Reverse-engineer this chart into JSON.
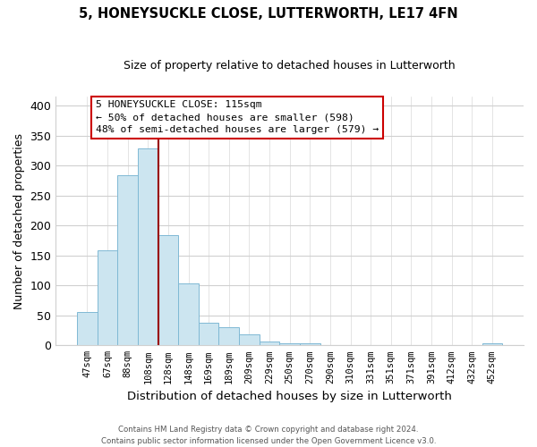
{
  "title": "5, HONEYSUCKLE CLOSE, LUTTERWORTH, LE17 4FN",
  "subtitle": "Size of property relative to detached houses in Lutterworth",
  "xlabel": "Distribution of detached houses by size in Lutterworth",
  "ylabel": "Number of detached properties",
  "bar_labels": [
    "47sqm",
    "67sqm",
    "88sqm",
    "108sqm",
    "128sqm",
    "148sqm",
    "169sqm",
    "189sqm",
    "209sqm",
    "229sqm",
    "250sqm",
    "270sqm",
    "290sqm",
    "310sqm",
    "331sqm",
    "351sqm",
    "371sqm",
    "391sqm",
    "412sqm",
    "432sqm",
    "452sqm"
  ],
  "bar_values": [
    55,
    158,
    284,
    329,
    184,
    103,
    37,
    31,
    18,
    6,
    4,
    3,
    0,
    0,
    0,
    0,
    0,
    0,
    0,
    0,
    3
  ],
  "bar_color": "#cce5f0",
  "bar_edge_color": "#7fb9d4",
  "vline_x_idx": 3,
  "vline_color": "#990000",
  "annotation_text_line1": "5 HONEYSUCKLE CLOSE: 115sqm",
  "annotation_text_line2": "← 50% of detached houses are smaller (598)",
  "annotation_text_line3": "48% of semi-detached houses are larger (579) →",
  "ylim": [
    0,
    415
  ],
  "yticks": [
    0,
    50,
    100,
    150,
    200,
    250,
    300,
    350,
    400
  ],
  "footer_line1": "Contains HM Land Registry data © Crown copyright and database right 2024.",
  "footer_line2": "Contains public sector information licensed under the Open Government Licence v3.0.",
  "background_color": "#ffffff",
  "grid_color": "#d0d0d0"
}
